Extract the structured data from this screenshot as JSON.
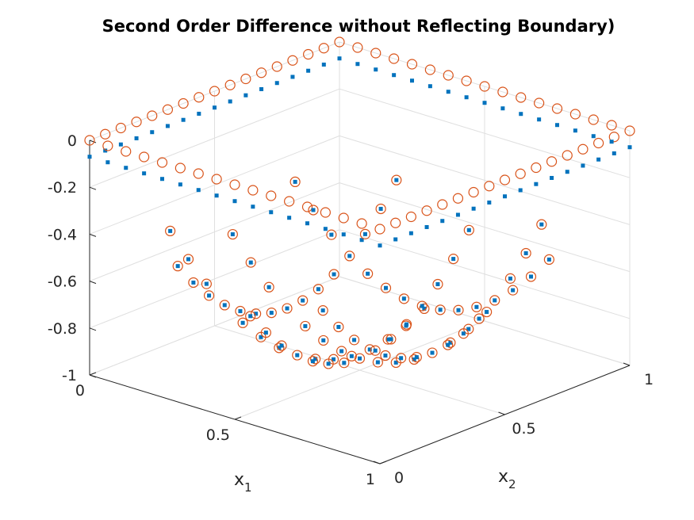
{
  "chart_data": {
    "type": "scatter3d",
    "title": "Second Order Difference without Reflecting Boundary)",
    "xlabel": "x",
    "xlabel_sub": "1",
    "ylabel": "x",
    "ylabel_sub": "2",
    "zlabel": "",
    "xlim": [
      0,
      1
    ],
    "ylim": [
      0,
      1
    ],
    "zlim": [
      -1,
      0
    ],
    "x_ticks": [
      "0",
      "0.5",
      "1"
    ],
    "y_ticks": [
      "0",
      "0.5",
      "1"
    ],
    "z_ticks": [
      "0",
      "-0.2",
      "-0.4",
      "-0.6",
      "-0.8",
      "-1"
    ],
    "grid": true,
    "n_points_per_edge": 17,
    "series": [
      {
        "marker": "point",
        "color": "#0072BD",
        "description_values": "z = -(x1(1-x1) + x2(1-x2)) sampled on grid with spacing 1/16; boundary rows near 0"
      },
      {
        "marker": "circle",
        "color": "#D95319",
        "description_values": "z = -(x1(1-x1) + x2(1-x2)) sampled on grid with spacing 1/16; boundary rows at 0"
      }
    ]
  }
}
